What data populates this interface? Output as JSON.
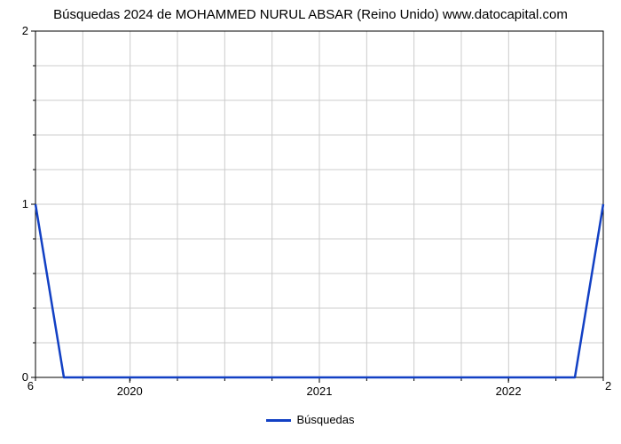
{
  "chart": {
    "type": "line",
    "title": "Búsquedas 2024 de MOHAMMED NURUL ABSAR (Reino Unido) www.datocapital.com",
    "title_fontsize": 15,
    "title_color": "#000000",
    "background_color": "#ffffff",
    "plot_border_color": "#000000",
    "grid_color": "#cccccc",
    "grid_width": 1,
    "line_color": "#1240c4",
    "line_width": 2.5,
    "ylim": [
      0,
      2
    ],
    "yticks_labeled": [
      0,
      1,
      2
    ],
    "y_minor_count": 4,
    "xtick_labels": [
      "2020",
      "2021",
      "2022"
    ],
    "xtick_positions": [
      0.166,
      0.5,
      0.833
    ],
    "corner_left": "6",
    "corner_right": "2",
    "legend_label": "Búsquedas",
    "series": {
      "x": [
        0.0,
        0.05,
        0.95,
        1.0
      ],
      "y": [
        1.0,
        0.0,
        0.0,
        1.0
      ]
    }
  }
}
